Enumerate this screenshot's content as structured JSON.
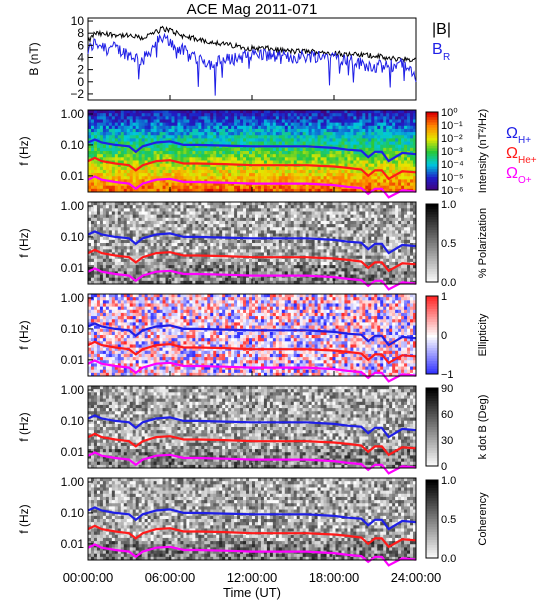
{
  "title": "ACE Mag 2011-071",
  "xlabel": "Time (UT)",
  "x_ticks": [
    "00:00:00",
    "06:00:00",
    "12:00:00",
    "18:00:00",
    "24:00:00"
  ],
  "colors": {
    "black": "#000000",
    "blue": "#1f1fe6",
    "red": "#ff1a1a",
    "magenta": "#ff00ff"
  },
  "chart_data": [
    {
      "type": "line",
      "ylabel": "B (nT)",
      "ylim": [
        -3,
        10.5
      ],
      "y_ticks": [
        "−2",
        "0",
        "2",
        "4",
        "6",
        "8",
        "10"
      ],
      "legend": [
        {
          "label": "|B|",
          "color": "#000000"
        },
        {
          "label": "B",
          "sub": "R",
          "color": "#1f1fe6"
        }
      ],
      "x_hours": [
        0,
        0.5,
        1,
        2,
        3,
        4,
        5,
        5.5,
        6,
        7,
        8,
        9,
        10,
        11,
        12,
        13,
        14,
        15,
        16,
        17,
        18,
        19,
        20,
        21,
        22,
        23,
        24
      ],
      "series": [
        {
          "name": "|B|",
          "values": [
            6.5,
            8.0,
            7.8,
            7.8,
            7.5,
            7.2,
            8.2,
            8.8,
            8.5,
            7.5,
            7.0,
            6.6,
            6.2,
            5.8,
            5.5,
            5.5,
            5.2,
            5.0,
            5.0,
            4.9,
            4.8,
            4.5,
            4.4,
            4.3,
            3.8,
            3.8,
            3.6
          ]
        },
        {
          "name": "BR",
          "values": [
            5.0,
            6.5,
            6.0,
            5.5,
            4.5,
            3.5,
            6.5,
            7.0,
            6.5,
            5.0,
            4.0,
            3.0,
            3.5,
            4.0,
            4.5,
            4.5,
            4.0,
            4.0,
            4.2,
            4.3,
            4.3,
            3.5,
            3.0,
            2.5,
            2.5,
            3.0,
            0.5
          ]
        }
      ]
    },
    {
      "type": "heatmap",
      "ylabel": "f (Hz)",
      "y_ticks": [
        "1.00",
        "0.10",
        "0.01"
      ],
      "colorbar": {
        "label": "Intensity (nT²/Hz)",
        "ticks": [
          "10⁰",
          "10⁻¹",
          "10⁻²",
          "10⁻³",
          "10⁻⁴",
          "10⁻⁵",
          "10⁻⁶"
        ],
        "scale": "rainbow"
      },
      "legend": [
        {
          "label": "Ω",
          "sub": "H+",
          "color": "#1f1fe6"
        },
        {
          "label": "Ω",
          "sub": "He+",
          "color": "#ff1a1a"
        },
        {
          "label": "Ω",
          "sub": "O+",
          "color": "#ff00ff"
        }
      ]
    },
    {
      "type": "heatmap",
      "ylabel": "f (Hz)",
      "y_ticks": [
        "1.00",
        "0.10",
        "0.01"
      ],
      "colorbar": {
        "label": "% Polarization",
        "ticks": [
          "1.0",
          "0.5",
          "0.0"
        ],
        "scale": "gray"
      }
    },
    {
      "type": "heatmap",
      "ylabel": "f (Hz)",
      "y_ticks": [
        "1.00",
        "0.10",
        "0.01"
      ],
      "colorbar": {
        "label": "Ellipticity",
        "ticks": [
          "1",
          "0",
          "−1"
        ],
        "scale": "bwr"
      }
    },
    {
      "type": "heatmap",
      "ylabel": "f (Hz)",
      "y_ticks": [
        "1.00",
        "0.10",
        "0.01"
      ],
      "colorbar": {
        "label": "k dot B (Deg)",
        "ticks": [
          "90",
          "60",
          "30",
          "0"
        ],
        "scale": "gray"
      }
    },
    {
      "type": "heatmap",
      "ylabel": "f (Hz)",
      "y_ticks": [
        "1.00",
        "0.10",
        "0.01"
      ],
      "colorbar": {
        "label": "Coherency",
        "ticks": [
          "1.0",
          "0.5",
          "0.0"
        ],
        "scale": "gray"
      }
    }
  ],
  "gyrofrequency_lines": {
    "x_hours": [
      0,
      0.5,
      1,
      2,
      3,
      3.5,
      4,
      5,
      6,
      7,
      8,
      10,
      12,
      14,
      16,
      17,
      18,
      19,
      20,
      20.5,
      21,
      21.5,
      22,
      23,
      24
    ],
    "H": [
      0.12,
      0.15,
      0.12,
      0.1,
      0.09,
      0.06,
      0.09,
      0.12,
      0.13,
      0.1,
      0.1,
      0.095,
      0.09,
      0.09,
      0.09,
      0.085,
      0.08,
      0.07,
      0.065,
      0.04,
      0.06,
      0.06,
      0.03,
      0.055,
      0.05
    ],
    "He": [
      0.03,
      0.038,
      0.03,
      0.025,
      0.022,
      0.015,
      0.022,
      0.03,
      0.032,
      0.025,
      0.025,
      0.024,
      0.022,
      0.022,
      0.022,
      0.021,
      0.02,
      0.018,
      0.016,
      0.01,
      0.015,
      0.015,
      0.008,
      0.014,
      0.013
    ],
    "O": [
      0.0075,
      0.0095,
      0.0075,
      0.0063,
      0.0056,
      0.0038,
      0.0056,
      0.0075,
      0.008,
      0.0063,
      0.0063,
      0.006,
      0.0056,
      0.0056,
      0.0056,
      0.0053,
      0.005,
      0.0044,
      0.004,
      0.0026,
      0.0038,
      0.0038,
      0.002,
      0.0034,
      0.0031
    ]
  }
}
